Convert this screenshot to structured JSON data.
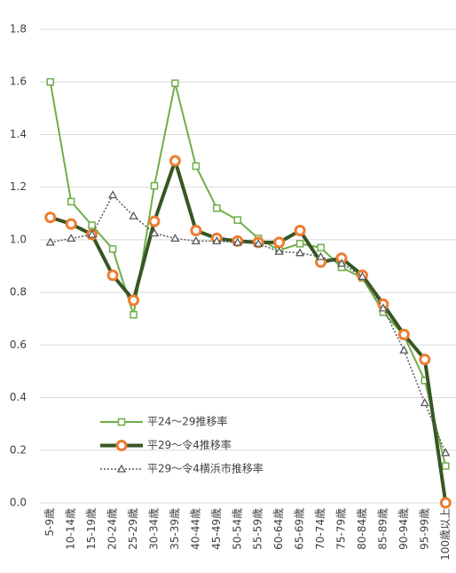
{
  "chart_data": {
    "type": "line",
    "categories": [
      "5-9歳",
      "10-14歳",
      "15-19歳",
      "20-24歳",
      "25-29歳",
      "30-34歳",
      "35-39歳",
      "40-44歳",
      "45-49歳",
      "50-54歳",
      "55-59歳",
      "60-64歳",
      "65-69歳",
      "70-74歳",
      "75-79歳",
      "80-84歳",
      "85-89歳",
      "90-94歳",
      "95-99歳",
      "100歳以上"
    ],
    "series": [
      {
        "name": "平24～29推移率",
        "color": "#70ad47",
        "marker": "square",
        "marker_color": "#70ad47",
        "line_style": "solid",
        "values": [
          1.6,
          1.145,
          1.055,
          0.965,
          0.715,
          1.205,
          1.595,
          1.28,
          1.12,
          1.075,
          1.005,
          0.96,
          0.985,
          0.97,
          0.895,
          0.855,
          0.725,
          0.635,
          0.465,
          0.14
        ]
      },
      {
        "name": "平29～令4推移率",
        "color": "#375623",
        "marker": "circle",
        "marker_color": "#ed7d31",
        "line_style": "solid",
        "values": [
          1.085,
          1.06,
          1.02,
          0.865,
          0.77,
          1.07,
          1.3,
          1.035,
          1.005,
          0.995,
          0.99,
          0.99,
          1.035,
          0.915,
          0.93,
          0.865,
          0.755,
          0.64,
          0.545,
          0.0
        ]
      },
      {
        "name": "平29～令4横浜市推移率",
        "color": "#595959",
        "marker": "triangle",
        "marker_color": "#595959",
        "line_style": "dotted",
        "values": [
          0.99,
          1.005,
          1.02,
          1.17,
          1.09,
          1.025,
          1.005,
          0.995,
          0.995,
          0.99,
          0.985,
          0.955,
          0.95,
          0.935,
          0.91,
          0.86,
          0.74,
          0.58,
          0.38,
          0.19
        ]
      }
    ],
    "ylim": [
      0,
      1.8
    ],
    "yticks": [
      {
        "value": 0,
        "label": "0.0"
      },
      {
        "value": 0.2,
        "label": "0.2"
      },
      {
        "value": 0.4,
        "label": "0.4"
      },
      {
        "value": 0.6,
        "label": "0.6"
      },
      {
        "value": 0.8,
        "label": "0.8"
      },
      {
        "value": 1,
        "label": "1.0"
      },
      {
        "value": 1.2,
        "label": "1.2"
      },
      {
        "value": 1.4,
        "label": "1.4"
      },
      {
        "value": 1.6,
        "label": "1.6"
      },
      {
        "value": 1.8,
        "label": "1.8"
      }
    ],
    "grid": true
  }
}
